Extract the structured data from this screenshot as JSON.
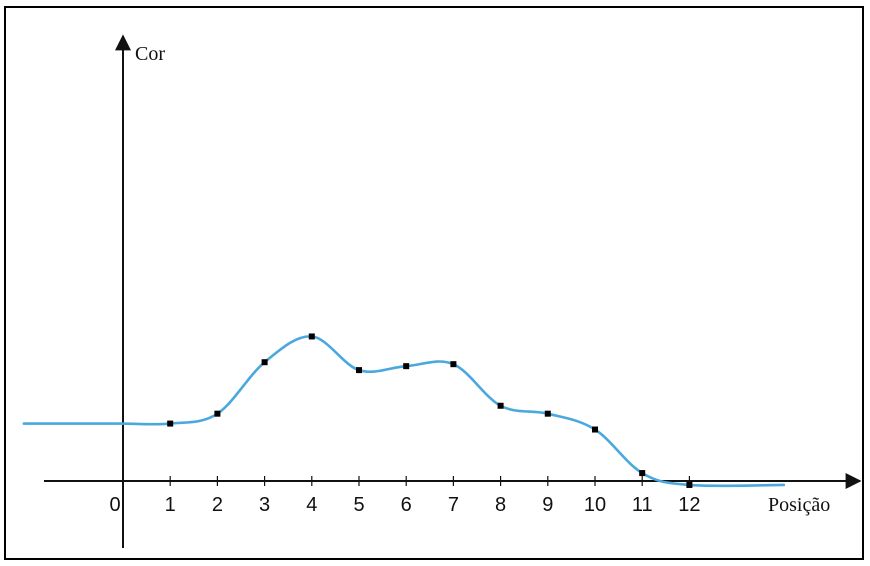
{
  "chart_data": {
    "type": "line",
    "title": "",
    "xlabel": "Posição",
    "ylabel": "Cor",
    "x_tick_labels": [
      "0",
      "1",
      "2",
      "3",
      "4",
      "5",
      "6",
      "7",
      "8",
      "9",
      "10",
      "11",
      "12"
    ],
    "x": [
      1,
      2,
      3,
      4,
      5,
      6,
      7,
      8,
      9,
      10,
      11,
      12
    ],
    "values": [
      2.9,
      3.4,
      6.0,
      7.3,
      5.6,
      5.8,
      5.9,
      3.8,
      3.4,
      2.6,
      0.4,
      -0.2
    ],
    "curve_extends": {
      "left_x": -2.1,
      "left_y": 2.9,
      "right_x": 14.0,
      "right_y": -0.2
    },
    "xlim": [
      -2.1,
      15.5
    ],
    "ylim": [
      -3.2,
      21
    ],
    "series_color": "#4aa8df",
    "marker_color": "#000000",
    "grid": false,
    "legend": "none"
  }
}
